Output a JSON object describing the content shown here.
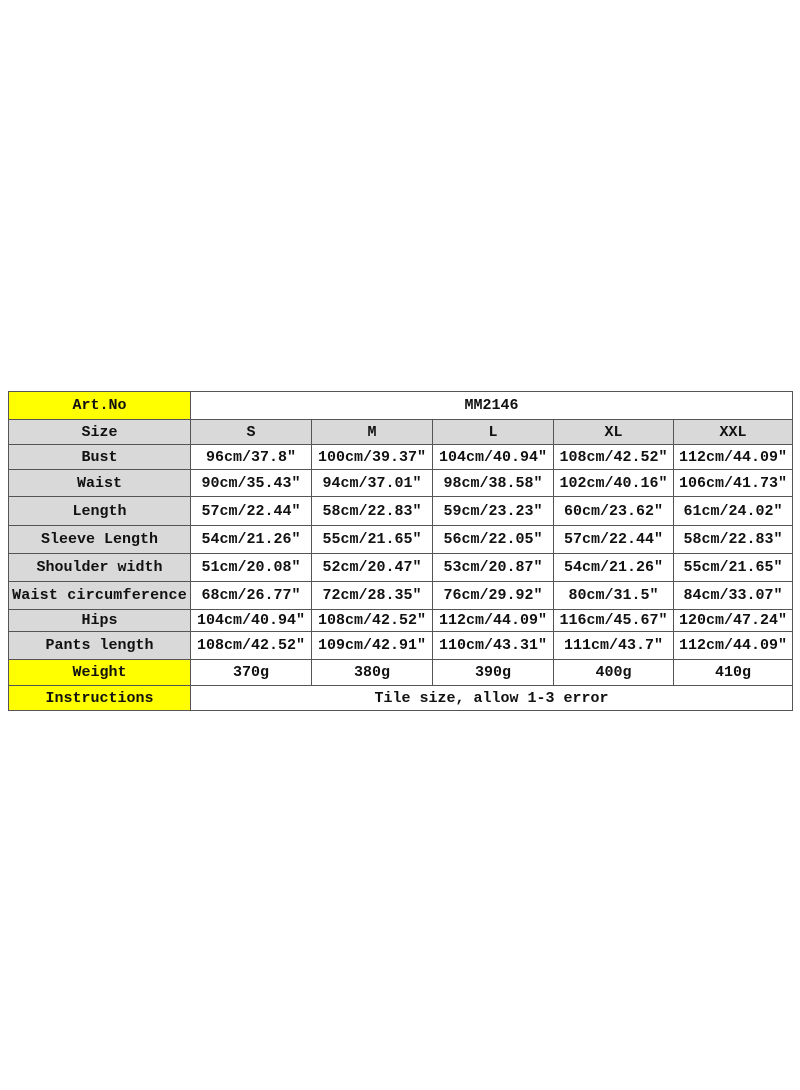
{
  "table": {
    "art_no_label": "Art.No",
    "art_no_value": "MM2146",
    "size_label": "Size",
    "sizes": [
      "S",
      "M",
      "L",
      "XL",
      "XXL"
    ],
    "rows": [
      {
        "label": "Bust",
        "values": [
          "96cm/37.8″",
          "100cm/39.37″",
          "104cm/40.94″",
          "108cm/42.52″",
          "112cm/44.09″"
        ]
      },
      {
        "label": "Waist",
        "values": [
          "90cm/35.43″",
          "94cm/37.01″",
          "98cm/38.58″",
          "102cm/40.16″",
          "106cm/41.73″"
        ]
      },
      {
        "label": "Length",
        "values": [
          "57cm/22.44″",
          "58cm/22.83″",
          "59cm/23.23″",
          "60cm/23.62″",
          "61cm/24.02″"
        ]
      },
      {
        "label": "Sleeve Length",
        "values": [
          "54cm/21.26″",
          "55cm/21.65″",
          "56cm/22.05″",
          "57cm/22.44″",
          "58cm/22.83″"
        ]
      },
      {
        "label": "Shoulder width",
        "values": [
          "51cm/20.08″",
          "52cm/20.47″",
          "53cm/20.87″",
          "54cm/21.26″",
          "55cm/21.65″"
        ]
      },
      {
        "label": "Waist circumference",
        "values": [
          "68cm/26.77″",
          "72cm/28.35″",
          "76cm/29.92″",
          "80cm/31.5″",
          "84cm/33.07″"
        ]
      },
      {
        "label": "Hips",
        "values": [
          "104cm/40.94″",
          "108cm/42.52″",
          "112cm/44.09″",
          "116cm/45.67″",
          "120cm/47.24″"
        ]
      },
      {
        "label": "Pants length",
        "values": [
          "108cm/42.52″",
          "109cm/42.91″",
          "110cm/43.31″",
          "111cm/43.7″",
          "112cm/44.09″"
        ]
      }
    ],
    "weight_label": "Weight",
    "weights": [
      "370g",
      "380g",
      "390g",
      "400g",
      "410g"
    ],
    "instructions_label": "Instructions",
    "instructions_value": "Tile size, allow 1-3 error"
  },
  "colors": {
    "highlight": "#ffff00",
    "header_gray": "#d9d9d9"
  }
}
